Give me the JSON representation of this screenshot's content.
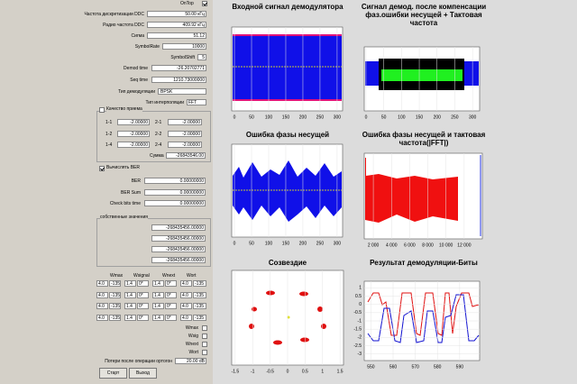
{
  "on_top": {
    "label": "OnTop",
    "checked": true
  },
  "settings": [
    {
      "label": "Частота дискретизации DDC",
      "value": "50.00 кГц"
    },
    {
      "label": "Радио частота DDC",
      "value": "409.92 кГц"
    },
    {
      "label": "Сигма",
      "value": "51.12"
    },
    {
      "label": "SymbolRate",
      "value": "10000"
    },
    {
      "label": "SymbolShift",
      "value": "5"
    },
    {
      "label": "Demod time",
      "value": "-26.20702771"
    },
    {
      "label": "Seq time",
      "value": "1210.73000000"
    }
  ],
  "demod_type": {
    "label": "Тип демодуляции",
    "value": "BPSK"
  },
  "interp_type": {
    "label": "Тип интерполяции",
    "value": "FFT"
  },
  "quality": {
    "label": "Качество приема",
    "checked": false,
    "cells": [
      [
        "1-1",
        "-2.00000",
        "2-1",
        "-2.00000"
      ],
      [
        "1-2",
        "-2.00000",
        "2-2",
        "-2.00000"
      ],
      [
        "1-4",
        "-2.00000",
        "2-4",
        "-2.00000"
      ]
    ],
    "sum_label": "Сумма",
    "sum": "-26843546.00"
  },
  "ber": {
    "label": "Вычислять BER",
    "checked": true,
    "rows": [
      {
        "label": "BER",
        "value": "0.00000000"
      },
      {
        "label": "BER Sum",
        "value": "0.00000000"
      },
      {
        "label": "Check bits time",
        "value": "0.00000000"
      }
    ]
  },
  "eigen": {
    "label": "собственные значения",
    "values": [
      "-268435456.00000",
      "-268435456.00000",
      "-268435456.00000",
      "-268435456.00000"
    ]
  },
  "weights": {
    "headers": [
      "Wmax",
      "Wsignal",
      "Wnext",
      "Wort"
    ],
    "rows": [
      [
        "4.0",
        "-135",
        "1.4",
        "0*",
        "1.4",
        "0*",
        "4.0",
        "-135"
      ],
      [
        "4.0",
        "-135",
        "1.4",
        "0*",
        "1.4",
        "0*",
        "4.0",
        "-135"
      ],
      [
        "4.0",
        "-135",
        "1.4",
        "0*",
        "1.4",
        "0*",
        "4.0",
        "-135"
      ],
      [
        "4.0",
        "-135",
        "1.4",
        "0*",
        "1.4",
        "0*",
        "4.0",
        "-135"
      ]
    ],
    "checks": [
      "Wmax",
      "Wsig",
      "Wnext",
      "Wort"
    ]
  },
  "loss": {
    "label": "Потери после операции ортогон",
    "value": "20.00 dB"
  },
  "buttons": [
    "Старт",
    "Выход"
  ],
  "plots": [
    {
      "title": "Входной сигнал демодулятора",
      "xlim": [
        -8,
        316
      ],
      "xticks": [
        0,
        50,
        100,
        150,
        200,
        250,
        300
      ]
    },
    {
      "title": "Сигнал демод. после компенсации фаз.ошибки несущей + Тактовая частота",
      "xlim": [
        -5,
        320
      ],
      "xticks": [
        0,
        50,
        100,
        150,
        200,
        250,
        300
      ]
    },
    {
      "title": "Ошибка фазы несущей",
      "xlim": [
        -8,
        316
      ],
      "xticks": [
        0,
        50,
        100,
        150,
        200,
        250,
        300
      ]
    },
    {
      "title": "Ошибка фазы несущей и тактовая частота(|FFT|)",
      "xlim": [
        1000,
        14000
      ],
      "xticks": [
        {
          "value": 2000,
          "label": "2 000"
        },
        {
          "value": 4000,
          "label": "4 000"
        },
        {
          "value": 6000,
          "label": "6 000"
        },
        {
          "value": 8000,
          "label": "8 000"
        },
        {
          "value": 10000,
          "label": "10 000"
        },
        {
          "value": 12000,
          "label": "12 000"
        }
      ]
    },
    {
      "title": "Созвездие",
      "xlim": [
        -1.6,
        1.6
      ],
      "xticks": [
        -1.5,
        -1,
        -0.5,
        0,
        0.5,
        1,
        1.5
      ]
    },
    {
      "title": "Результат демодуляции-Биты",
      "xlim": [
        547,
        599
      ],
      "xticks": [
        550,
        560,
        570,
        580,
        590
      ],
      "ylim": [
        -3.4,
        1.4
      ],
      "yticks": [
        1,
        0.5,
        0,
        -0.5,
        -1,
        -1.5,
        -2,
        -2.5,
        -3
      ]
    }
  ]
}
